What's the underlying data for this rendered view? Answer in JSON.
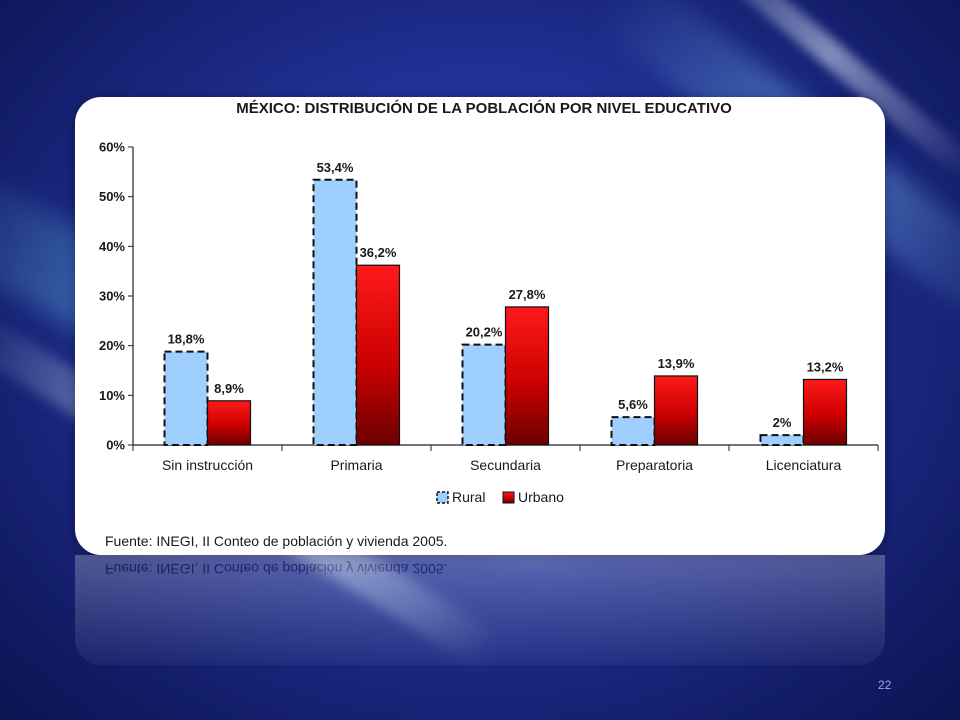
{
  "slide": {
    "number": "22"
  },
  "chart_data": {
    "type": "bar",
    "title": "MÉXICO: DISTRIBUCIÓN DE LA POBLACIÓN POR NIVEL EDUCATIVO",
    "categories": [
      "Sin instrucción",
      "Primaria",
      "Secundaria",
      "Preparatoria",
      "Licenciatura"
    ],
    "series": [
      {
        "name": "Rural",
        "values": [
          18.8,
          53.4,
          20.2,
          5.6,
          2
        ],
        "labels": [
          "18,8%",
          "53,4%",
          "20,2%",
          "5,6%",
          "2%"
        ],
        "color": "#9fcfff"
      },
      {
        "name": "Urbano",
        "values": [
          8.9,
          36.2,
          27.8,
          13.9,
          13.2
        ],
        "labels": [
          "8,9%",
          "36,2%",
          "27,8%",
          "13,9%",
          "13,2%"
        ],
        "color": "#e00000"
      }
    ],
    "ylim": [
      0,
      60
    ],
    "yticks": [
      "0%",
      "10%",
      "20%",
      "30%",
      "40%",
      "50%",
      "60%"
    ],
    "legend": "bottom",
    "grid": false,
    "source": "Fuente: INEGI, II Conteo de población y vivienda 2005."
  }
}
